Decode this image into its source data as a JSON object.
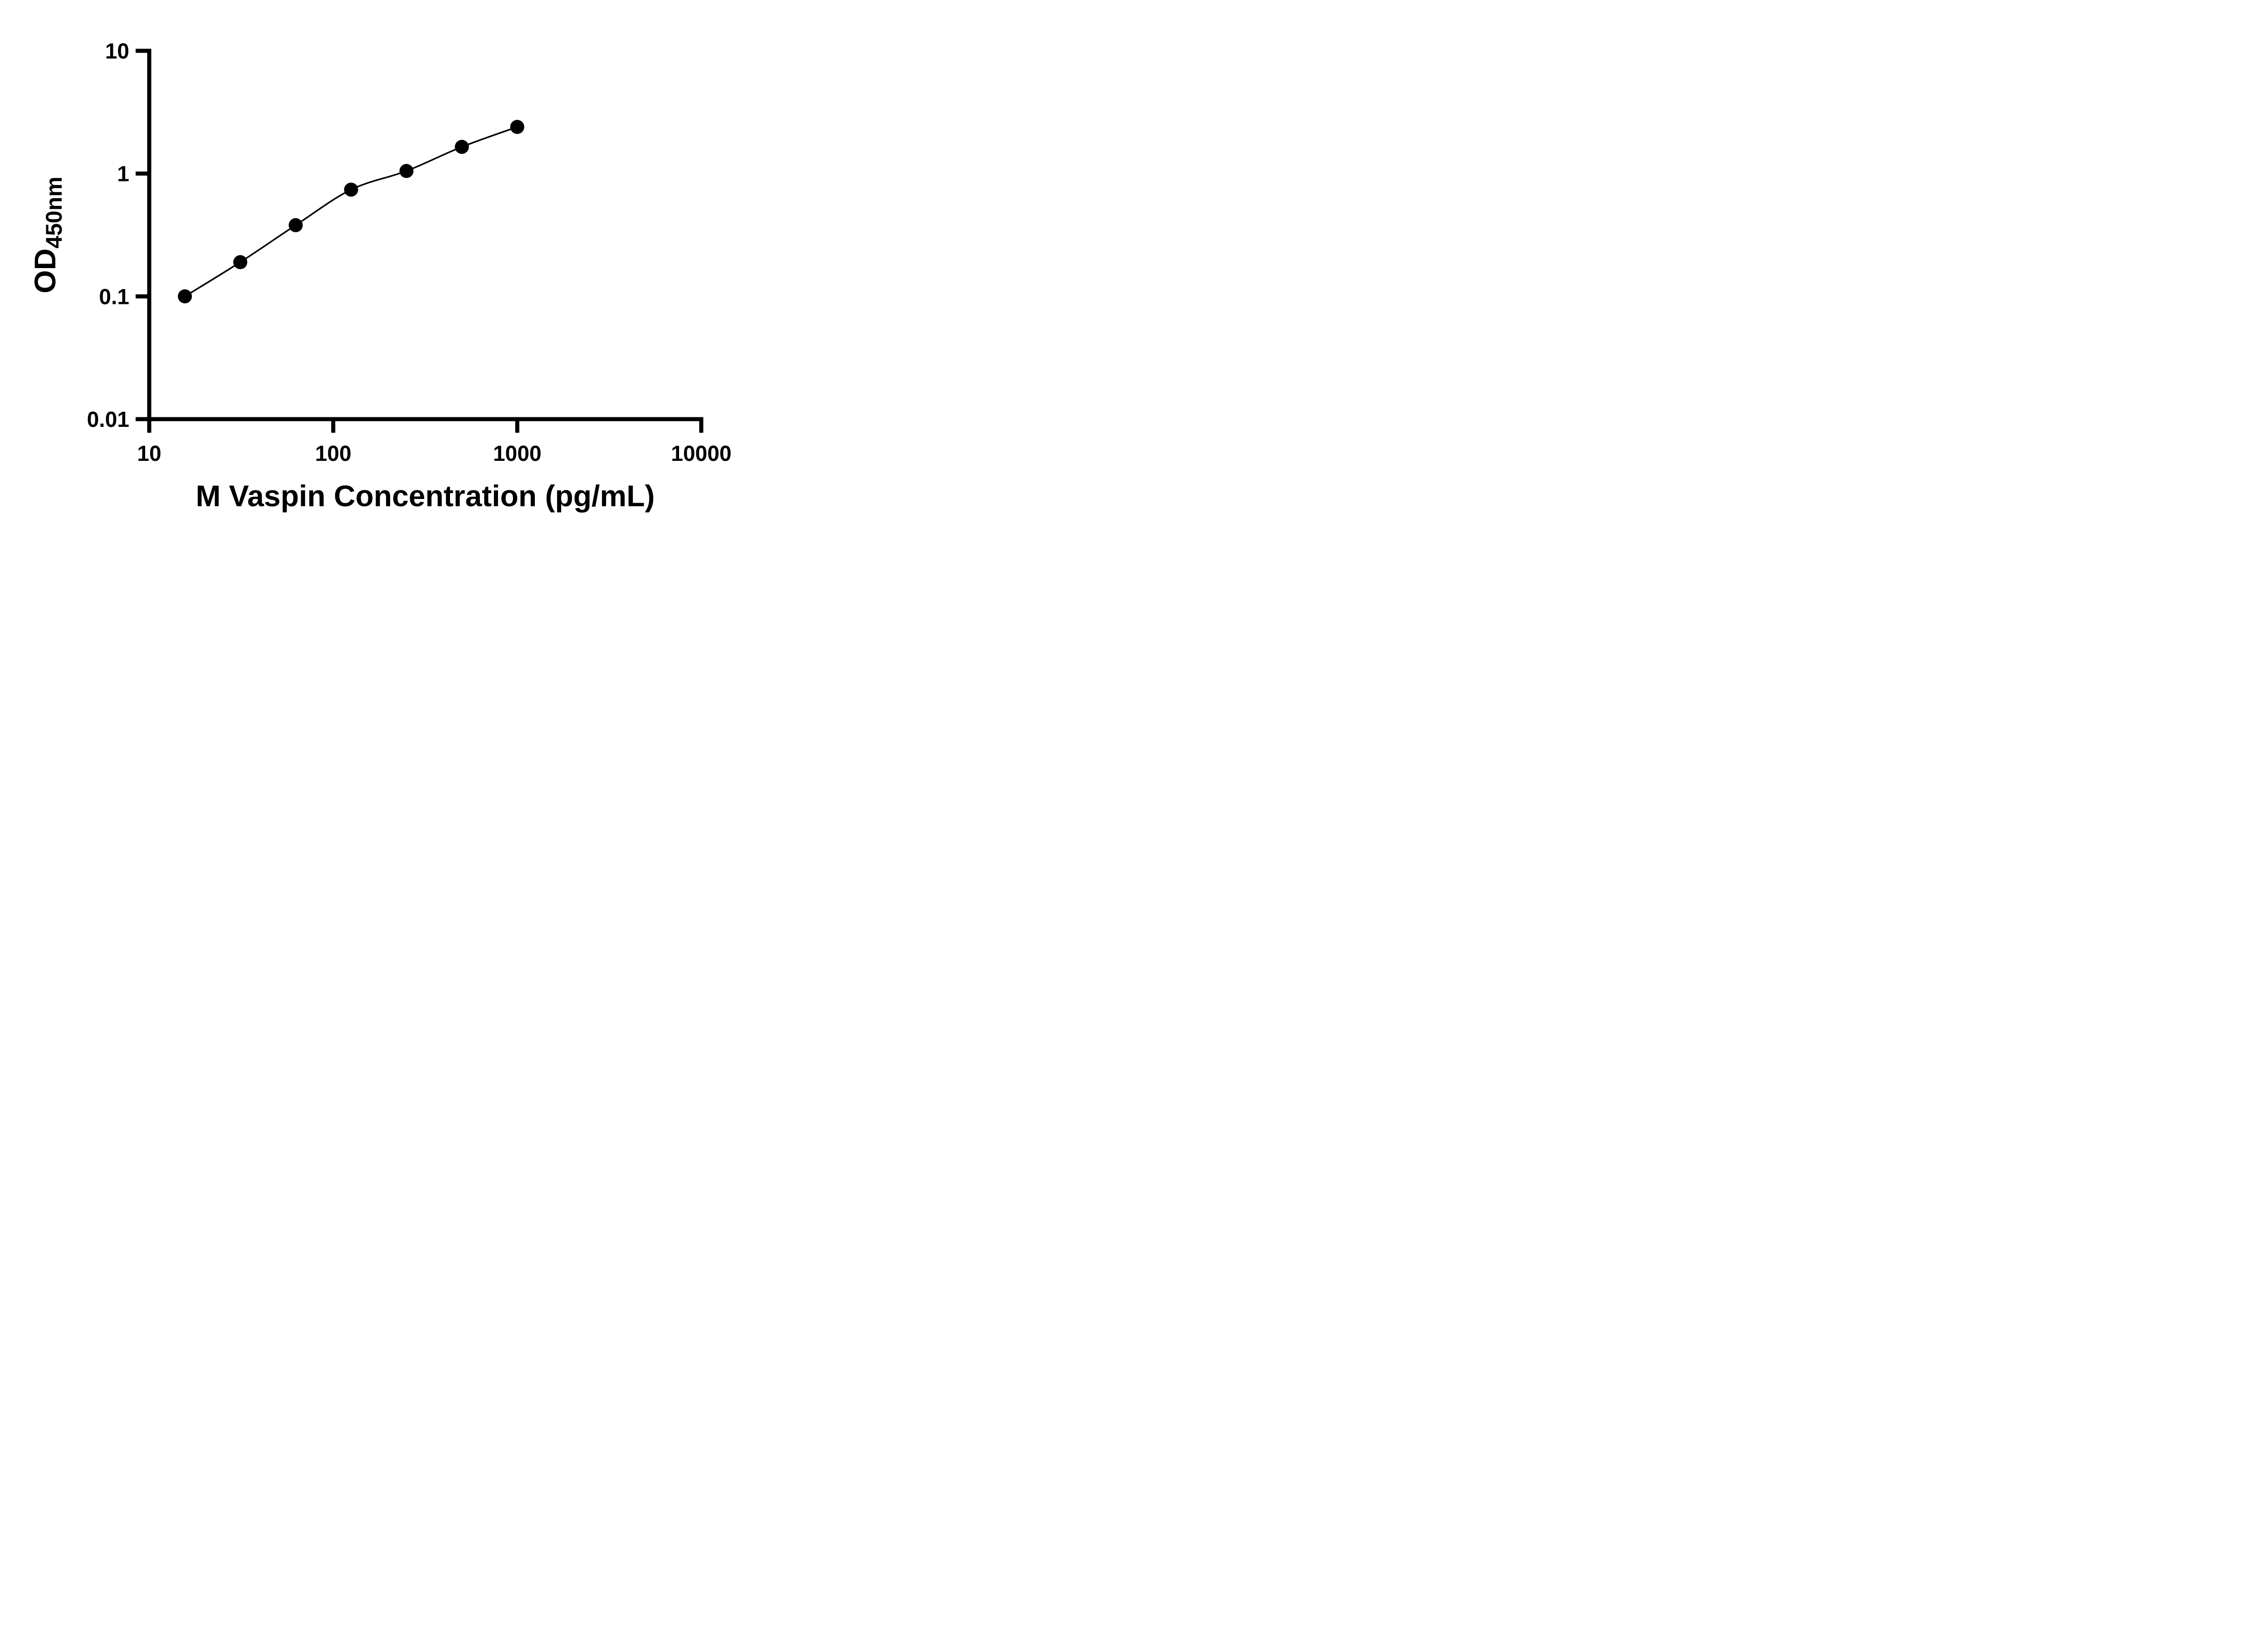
{
  "figure": {
    "background": "#ffffff",
    "axis_color": "#000000",
    "text_color": "#000000"
  },
  "chart_data": {
    "type": "scatter",
    "title": "",
    "xlabel": "M Vaspin Concentration (pg/mL)",
    "ylabel_main": "OD",
    "ylabel_subscript": "450nm",
    "x_scale": "log10",
    "y_scale": "log10",
    "xlim": [
      10,
      10000
    ],
    "ylim": [
      0.01,
      10
    ],
    "x_ticks": [
      10,
      100,
      1000,
      10000
    ],
    "x_tick_labels": [
      "10",
      "100",
      "1000",
      "10000"
    ],
    "y_ticks": [
      0.01,
      0.1,
      1,
      10
    ],
    "y_tick_labels": [
      "0.01",
      "0.1",
      "1",
      "10"
    ],
    "grid": false,
    "legend": "none",
    "series": [
      {
        "marker": "circle",
        "marker_color": "#000000",
        "line": "smooth-fit-curve",
        "line_color": "#000000",
        "points": [
          {
            "x": 15.625,
            "y": 0.1
          },
          {
            "x": 31.25,
            "y": 0.19
          },
          {
            "x": 62.5,
            "y": 0.38
          },
          {
            "x": 125,
            "y": 0.74
          },
          {
            "x": 250,
            "y": 1.05
          },
          {
            "x": 500,
            "y": 1.65
          },
          {
            "x": 1000,
            "y": 2.4
          }
        ]
      }
    ]
  }
}
